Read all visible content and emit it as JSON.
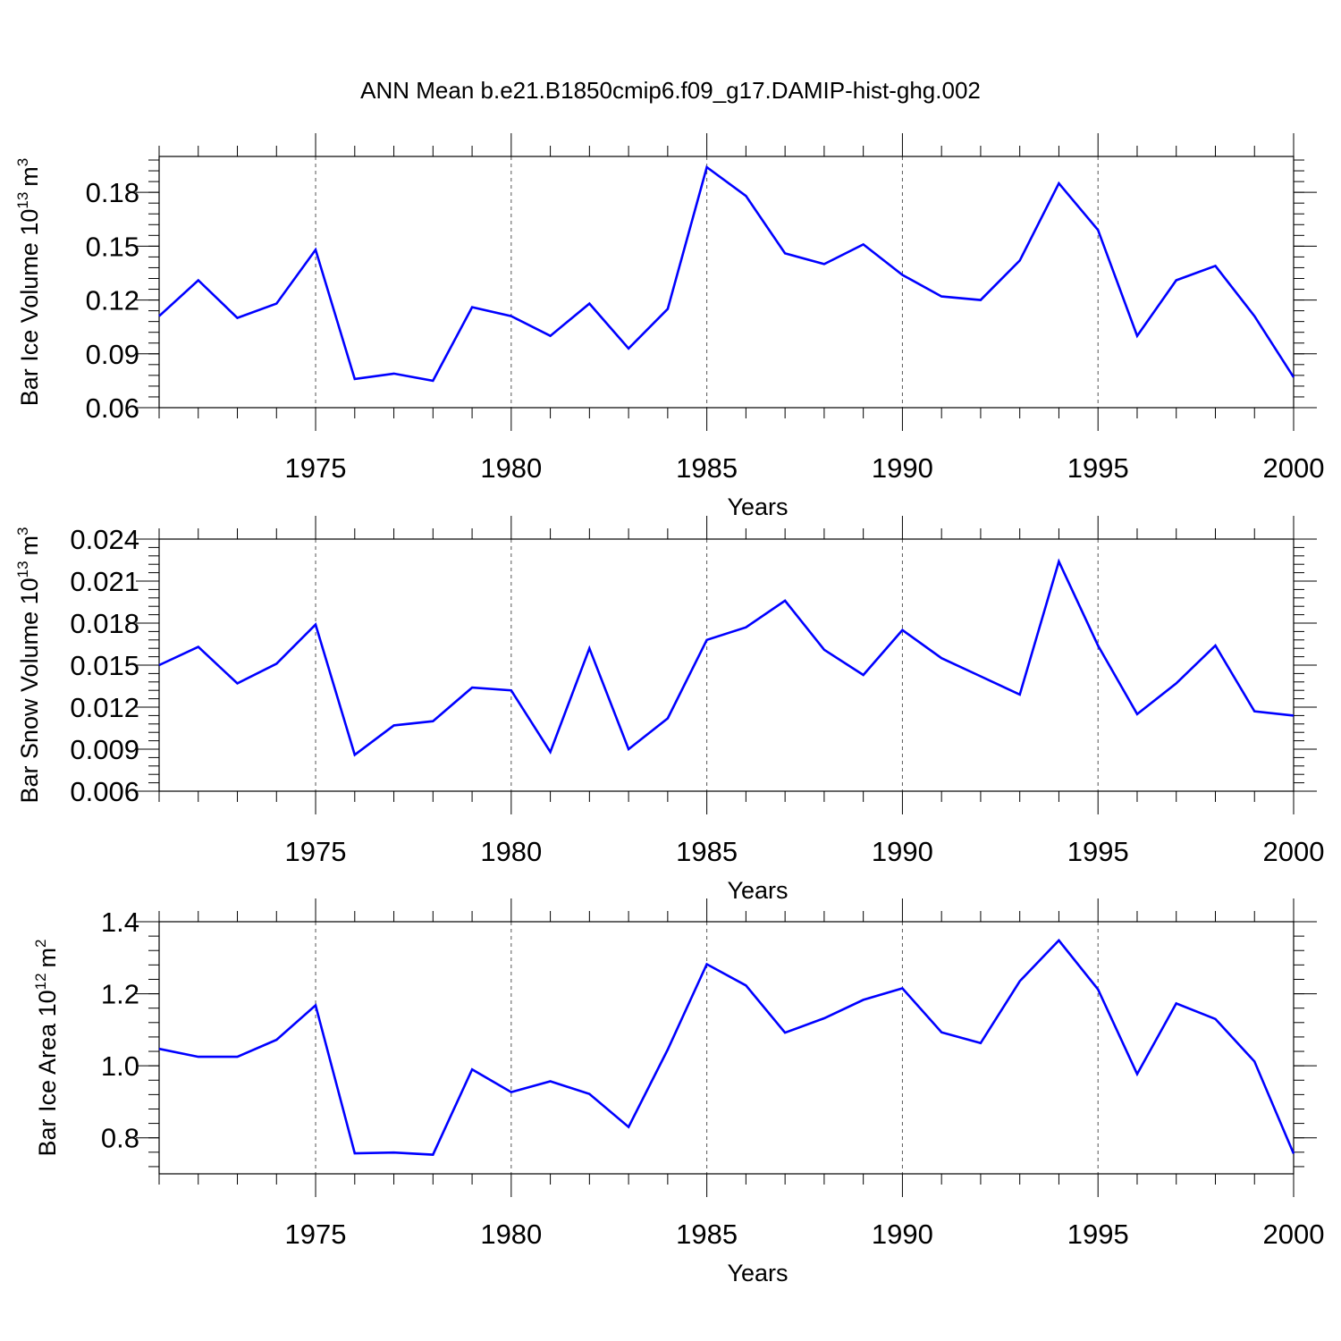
{
  "title": "ANN Mean b.e21.B1850cmip6.f09_g17.DAMIP-hist-ghg.002",
  "line_color": "#0000ff",
  "chart_data": [
    {
      "type": "line",
      "ylabel": "Bar Ice Volume 10",
      "ylabel_exp": "13",
      "ylabel_unit": "m",
      "ylabel_unit_exp": "3",
      "xlabel": "Years",
      "xlim": [
        1971,
        2000
      ],
      "ylim": [
        0.06,
        0.2
      ],
      "yticks": [
        0.06,
        0.09,
        0.12,
        0.15,
        0.18
      ],
      "ytick_labels": [
        "0.06",
        "0.09",
        "0.12",
        "0.15",
        "0.18"
      ],
      "xticks": [
        1975,
        1980,
        1985,
        1990,
        1995,
        2000
      ],
      "xtick_labels": [
        "1975",
        "1980",
        "1985",
        "1990",
        "1995",
        "2000"
      ],
      "x": [
        1971,
        1972,
        1973,
        1974,
        1975,
        1976,
        1977,
        1978,
        1979,
        1980,
        1981,
        1982,
        1983,
        1984,
        1985,
        1986,
        1987,
        1988,
        1989,
        1990,
        1991,
        1992,
        1993,
        1994,
        1995,
        1996,
        1997,
        1998,
        1999,
        2000
      ],
      "values": [
        0.111,
        0.131,
        0.11,
        0.118,
        0.148,
        0.076,
        0.079,
        0.075,
        0.116,
        0.111,
        0.1,
        0.118,
        0.093,
        0.115,
        0.194,
        0.178,
        0.146,
        0.14,
        0.151,
        0.134,
        0.122,
        0.12,
        0.142,
        0.185,
        0.159,
        0.1,
        0.131,
        0.139,
        0.111,
        0.077
      ]
    },
    {
      "type": "line",
      "ylabel": "Bar Snow Volume 10",
      "ylabel_exp": "13",
      "ylabel_unit": "m",
      "ylabel_unit_exp": "3",
      "xlabel": "Years",
      "xlim": [
        1971,
        2000
      ],
      "ylim": [
        0.006,
        0.024
      ],
      "yticks": [
        0.006,
        0.009,
        0.012,
        0.015,
        0.018,
        0.021,
        0.024
      ],
      "ytick_labels": [
        "0.006",
        "0.009",
        "0.012",
        "0.015",
        "0.018",
        "0.021",
        "0.024"
      ],
      "xticks": [
        1975,
        1980,
        1985,
        1990,
        1995,
        2000
      ],
      "xtick_labels": [
        "1975",
        "1980",
        "1985",
        "1990",
        "1995",
        "2000"
      ],
      "x": [
        1971,
        1972,
        1973,
        1974,
        1975,
        1976,
        1977,
        1978,
        1979,
        1980,
        1981,
        1982,
        1983,
        1984,
        1985,
        1986,
        1987,
        1988,
        1989,
        1990,
        1991,
        1992,
        1993,
        1994,
        1995,
        1996,
        1997,
        1998,
        1999,
        2000
      ],
      "values": [
        0.015,
        0.0163,
        0.0137,
        0.0151,
        0.0179,
        0.0086,
        0.0107,
        0.011,
        0.0134,
        0.0132,
        0.0088,
        0.0162,
        0.009,
        0.0112,
        0.0168,
        0.0177,
        0.0196,
        0.0161,
        0.0143,
        0.0175,
        0.0155,
        0.0142,
        0.0129,
        0.0224,
        0.0164,
        0.0115,
        0.0137,
        0.0164,
        0.0117,
        0.0114
      ]
    },
    {
      "type": "line",
      "ylabel": "Bar Ice Area 10",
      "ylabel_exp": "12",
      "ylabel_unit": "m",
      "ylabel_unit_exp": "2",
      "xlabel": "Years",
      "xlim": [
        1971,
        2000
      ],
      "ylim": [
        0.7,
        1.4
      ],
      "yticks": [
        0.8,
        1.0,
        1.2,
        1.4
      ],
      "ytick_labels": [
        "0.8",
        "1.0",
        "1.2",
        "1.4"
      ],
      "xticks": [
        1975,
        1980,
        1985,
        1990,
        1995,
        2000
      ],
      "xtick_labels": [
        "1975",
        "1980",
        "1985",
        "1990",
        "1995",
        "2000"
      ],
      "x": [
        1971,
        1972,
        1973,
        1974,
        1975,
        1976,
        1977,
        1978,
        1979,
        1980,
        1981,
        1982,
        1983,
        1984,
        1985,
        1986,
        1987,
        1988,
        1989,
        1990,
        1991,
        1992,
        1993,
        1994,
        1995,
        1996,
        1997,
        1998,
        1999,
        2000
      ],
      "values": [
        1.047,
        1.025,
        1.025,
        1.072,
        1.168,
        0.757,
        0.759,
        0.753,
        0.99,
        0.927,
        0.957,
        0.922,
        0.83,
        1.045,
        1.282,
        1.223,
        1.092,
        1.132,
        1.183,
        1.215,
        1.093,
        1.063,
        1.235,
        1.348,
        1.212,
        0.977,
        1.173,
        1.13,
        1.012,
        0.756
      ]
    }
  ]
}
